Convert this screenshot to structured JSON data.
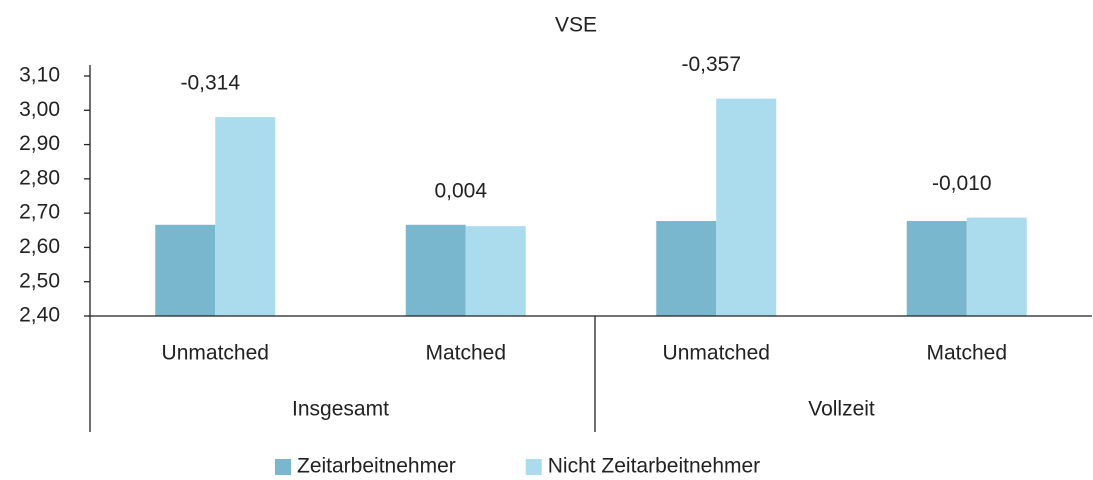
{
  "chart_data": {
    "type": "bar",
    "title": "VSE",
    "categories": [
      "Unmatched",
      "Matched",
      "Unmatched",
      "Matched"
    ],
    "group_labels": [
      "Insgesamt",
      "Vollzeit"
    ],
    "series": [
      {
        "name": "Zeitarbeitnehmer",
        "color": "#79b7cf",
        "values": [
          2.666,
          2.666,
          2.677,
          2.677
        ]
      },
      {
        "name": "Nicht Zeitarbeitnehmer",
        "color": "#abdcee",
        "values": [
          2.98,
          2.662,
          3.034,
          2.687
        ]
      }
    ],
    "differences": [
      -0.314,
      0.004,
      -0.357,
      -0.01
    ],
    "difference_labels": [
      "-0,314",
      "0,004",
      "-0,357",
      "-0,010"
    ],
    "ylim": [
      2.4,
      3.1
    ],
    "yticks": [
      {
        "value": 2.4,
        "label": "2,40"
      },
      {
        "value": 2.5,
        "label": "2,50"
      },
      {
        "value": 2.6,
        "label": "2,60"
      },
      {
        "value": 2.7,
        "label": "2,70"
      },
      {
        "value": 2.8,
        "label": "2,80"
      },
      {
        "value": 2.9,
        "label": "2,90"
      },
      {
        "value": 3.0,
        "label": "3,00"
      },
      {
        "value": 3.1,
        "label": "3,10"
      }
    ],
    "grid": false,
    "legend": "bottom"
  }
}
